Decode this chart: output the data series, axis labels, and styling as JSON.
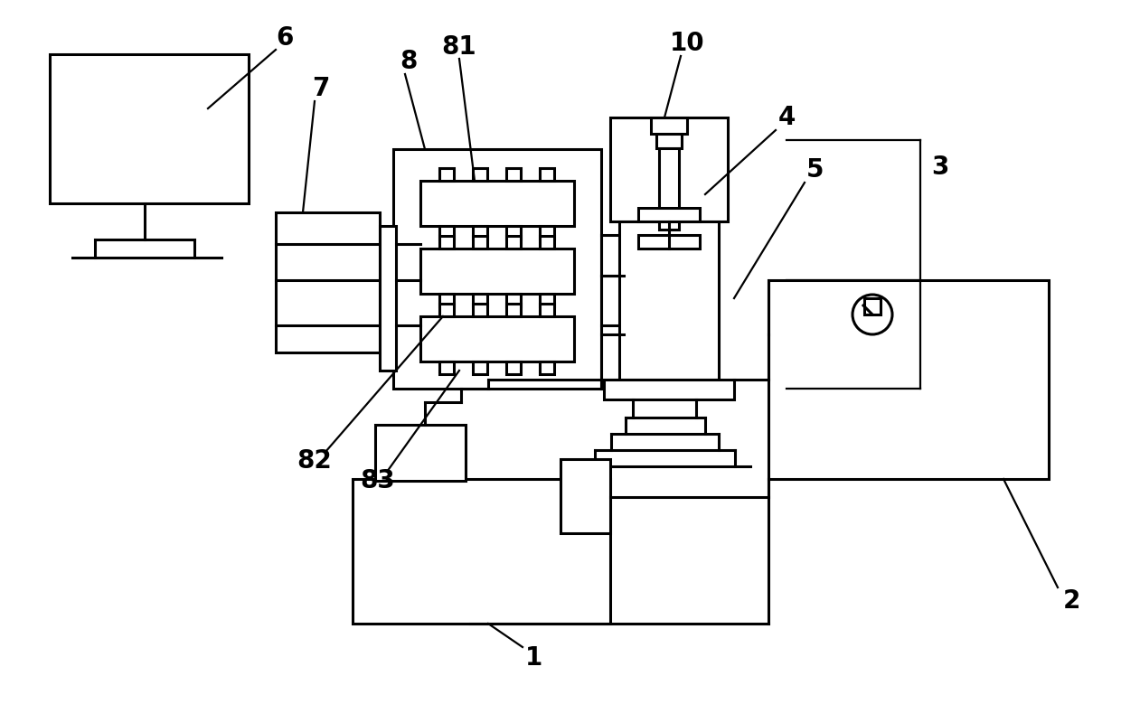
{
  "bg_color": "#ffffff",
  "line_color": "#000000",
  "line_width": 2.2,
  "thin_lw": 1.6,
  "label_fontsize": 20,
  "figsize": [
    12.4,
    8.0
  ],
  "dpi": 100
}
